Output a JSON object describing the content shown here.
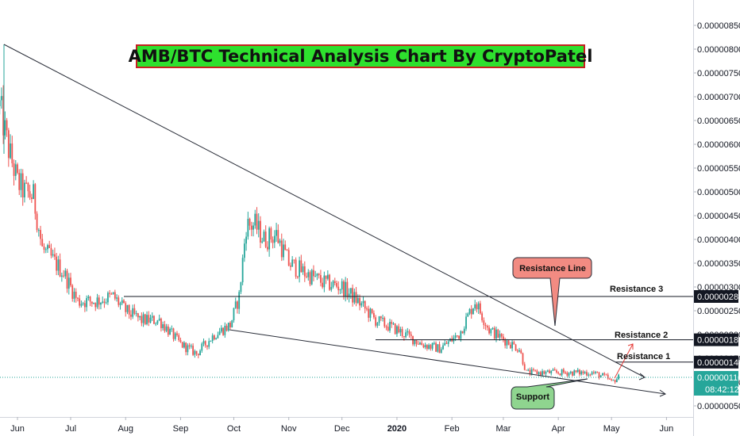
{
  "title": "AMB/BTC Technical Analysis Chart By CryptoPatel",
  "colors": {
    "up": "#26a69a",
    "down": "#ef5350",
    "current": "#26a69a"
  },
  "annotations": {
    "resistance_line": "Resistance Line",
    "support": "Support",
    "resistance_3": "Resistance 3",
    "resistance_2": "Resistance 2",
    "resistance_1": "Resistance 1"
  },
  "price_axis": {
    "ticks": [
      "0.00000850",
      "0.00000800",
      "0.00000750",
      "0.00000700",
      "0.00000650",
      "0.00000600",
      "0.00000550",
      "0.00000500",
      "0.00000450",
      "0.00000400",
      "0.00000350",
      "0.00000300",
      "0.00000250",
      "0.00000200",
      "0.00000150",
      "0.00000100",
      "0.00000050"
    ],
    "levels": [
      {
        "label": "0.00000280",
        "value": 2.8e-06,
        "style": "dark"
      },
      {
        "label": "0.00000189",
        "value": 1.89e-06,
        "style": "dark"
      },
      {
        "label": "0.00000142",
        "value": 1.42e-06,
        "style": "dark"
      },
      {
        "label": "0.00000110",
        "value": 1.1e-06,
        "style": "current"
      }
    ],
    "countdown": "08:42:12"
  },
  "time_axis": {
    "labels": [
      "Jun",
      "Jul",
      "Aug",
      "Sep",
      "Oct",
      "Nov",
      "Dec",
      "2020",
      "Feb",
      "Mar",
      "Apr",
      "May",
      "Jun"
    ]
  },
  "chart_data": {
    "type": "candlestick",
    "title": "AMB/BTC Technical Analysis Chart By CryptoPatel",
    "y_range": [
      2e-07,
      8.9e-06
    ],
    "x_range": [
      "2019-05-22",
      "2020-06-10"
    ],
    "horizontal_levels": [
      {
        "label": "Resistance 3",
        "value": 2.8e-06
      },
      {
        "label": "Resistance 2",
        "value": 1.89e-06
      },
      {
        "label": "Resistance 1",
        "value": 1.42e-06
      },
      {
        "label": "current",
        "value": 1.1e-06
      }
    ],
    "trendlines": [
      {
        "name": "Resistance Line",
        "from": [
          "2019-05-23",
          8.1e-06
        ],
        "to": [
          "2020-05-24",
          1.1e-06
        ]
      },
      {
        "name": "Support",
        "from": [
          "2019-09-29",
          2.1e-06
        ],
        "to": [
          "2020-06-01",
          7e-07
        ]
      }
    ],
    "close_path": [
      [
        "2019-05-22",
        6.8e-06
      ],
      [
        "2019-05-27",
        5.9e-06
      ],
      [
        "2019-06-01",
        5.2e-06
      ],
      [
        "2019-06-05",
        5e-06
      ],
      [
        "2019-06-10",
        4.9e-06
      ],
      [
        "2019-06-15",
        3.8e-06
      ],
      [
        "2019-06-20",
        3.6e-06
      ],
      [
        "2019-06-27",
        3.3e-06
      ],
      [
        "2019-07-05",
        2.7e-06
      ],
      [
        "2019-07-15",
        2.7e-06
      ],
      [
        "2019-07-25",
        2.8e-06
      ],
      [
        "2019-08-01",
        2.5e-06
      ],
      [
        "2019-08-10",
        2.3e-06
      ],
      [
        "2019-08-20",
        2.3e-06
      ],
      [
        "2019-09-01",
        1.8e-06
      ],
      [
        "2019-09-10",
        1.6e-06
      ],
      [
        "2019-09-20",
        2e-06
      ],
      [
        "2019-09-29",
        2.2e-06
      ],
      [
        "2019-10-04",
        2.8e-06
      ],
      [
        "2019-10-08",
        4.3e-06
      ],
      [
        "2019-10-13",
        4.3e-06
      ],
      [
        "2019-10-18",
        4e-06
      ],
      [
        "2019-10-25",
        4.1e-06
      ],
      [
        "2019-11-01",
        3.5e-06
      ],
      [
        "2019-11-10",
        3.3e-06
      ],
      [
        "2019-11-20",
        3.1e-06
      ],
      [
        "2019-12-01",
        3e-06
      ],
      [
        "2019-12-10",
        2.7e-06
      ],
      [
        "2019-12-20",
        2.3e-06
      ],
      [
        "2020-01-01",
        2.1e-06
      ],
      [
        "2020-01-15",
        1.8e-06
      ],
      [
        "2020-01-25",
        1.7e-06
      ],
      [
        "2020-02-05",
        2e-06
      ],
      [
        "2020-02-14",
        2.7e-06
      ],
      [
        "2020-02-22",
        2.1e-06
      ],
      [
        "2020-03-01",
        1.9e-06
      ],
      [
        "2020-03-10",
        1.7e-06
      ],
      [
        "2020-03-14",
        1.2e-06
      ],
      [
        "2020-03-20",
        1.2e-06
      ],
      [
        "2020-04-01",
        1.2e-06
      ],
      [
        "2020-04-10",
        1.2e-06
      ],
      [
        "2020-04-20",
        1.2e-06
      ],
      [
        "2020-04-28",
        1.1e-06
      ],
      [
        "2020-05-01",
        1e-06
      ],
      [
        "2020-05-05",
        1.1e-06
      ]
    ]
  }
}
